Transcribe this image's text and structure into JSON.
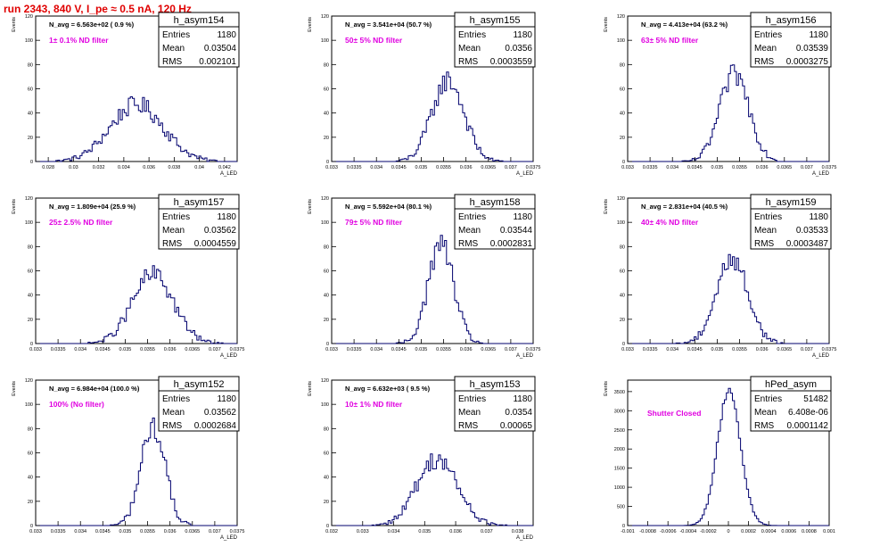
{
  "page_title": "run 2343,   840 V, I_pe ≈ 0.5 nA, 120 Hz",
  "colors": {
    "hist": "#00006e",
    "annot": "#e000e0",
    "title": "#e00000",
    "axis": "#000000"
  },
  "chart_data": [
    {
      "type": "histogram",
      "name": "h_asym154",
      "nlabel": "N_avg = 6.563e+02 ( 0.9 %)",
      "filter": "1± 0.1% ND filter",
      "stats": [
        [
          "Entries",
          "1180"
        ],
        [
          "Mean",
          "0.03504"
        ],
        [
          "RMS",
          "0.002101"
        ]
      ],
      "xlim": [
        0.027,
        0.043
      ],
      "ylim": [
        0,
        120
      ],
      "xticks": [
        0.028,
        0.03,
        0.032,
        0.034,
        0.036,
        0.038,
        0.04,
        0.042
      ],
      "xtick_labels": [
        "0.028",
        "0.03",
        "0.032",
        "0.034",
        "0.036",
        "0.038",
        "0.04",
        "0.042"
      ],
      "yticks": [
        0,
        20,
        40,
        60,
        80,
        100,
        120
      ],
      "ytick_labels": [
        "0",
        "20",
        "40",
        "60",
        "80",
        "100",
        "120"
      ],
      "ylabel": "Events",
      "xlabel": "A_LED",
      "mean": 0.03504,
      "rms": 0.002101,
      "peak": 47
    },
    {
      "type": "histogram",
      "name": "h_asym155",
      "nlabel": "N_avg = 3.541e+04 (50.7 %)",
      "filter": "50± 5% ND filter",
      "stats": [
        [
          "Entries",
          "1180"
        ],
        [
          "Mean",
          "0.0356"
        ],
        [
          "RMS",
          "0.0003559"
        ]
      ],
      "xlim": [
        0.033,
        0.0375
      ],
      "ylim": [
        0,
        120
      ],
      "xticks": [
        0.033,
        0.0335,
        0.034,
        0.0345,
        0.035,
        0.0355,
        0.036,
        0.0365,
        0.037,
        0.0375
      ],
      "xtick_labels": [
        "0.033",
        "0.0335",
        "0.034",
        "0.0345",
        "0.035",
        "0.0355",
        "0.036",
        "0.0365",
        "0.037",
        "0.0375"
      ],
      "yticks": [
        0,
        20,
        40,
        60,
        80,
        100,
        120
      ],
      "ytick_labels": [
        "0",
        "20",
        "40",
        "60",
        "80",
        "100",
        "120"
      ],
      "ylabel": "Events",
      "xlabel": "A_LED",
      "mean": 0.0356,
      "rms": 0.0003559,
      "peak": 67
    },
    {
      "type": "histogram",
      "name": "h_asym156",
      "nlabel": "N_avg = 4.413e+04 (63.2 %)",
      "filter": "63± 5% ND filter",
      "stats": [
        [
          "Entries",
          "1180"
        ],
        [
          "Mean",
          "0.03539"
        ],
        [
          "RMS",
          "0.0003275"
        ]
      ],
      "xlim": [
        0.033,
        0.0375
      ],
      "ylim": [
        0,
        120
      ],
      "xticks": [
        0.033,
        0.0335,
        0.034,
        0.0345,
        0.035,
        0.0355,
        0.036,
        0.0365,
        0.037,
        0.0375
      ],
      "xtick_labels": [
        "0.033",
        "0.0335",
        "0.034",
        "0.0345",
        "0.035",
        "0.0355",
        "0.036",
        "0.0365",
        "0.037",
        "0.0375"
      ],
      "yticks": [
        0,
        20,
        40,
        60,
        80,
        100,
        120
      ],
      "ytick_labels": [
        "0",
        "20",
        "40",
        "60",
        "80",
        "100",
        "120"
      ],
      "ylabel": "Events",
      "xlabel": "A_LED",
      "mean": 0.03539,
      "rms": 0.0003275,
      "peak": 72
    },
    {
      "type": "histogram",
      "name": "h_asym157",
      "nlabel": "N_avg = 1.809e+04 (25.9 %)",
      "filter": "25± 2.5% ND filter",
      "stats": [
        [
          "Entries",
          "1180"
        ],
        [
          "Mean",
          "0.03562"
        ],
        [
          "RMS",
          "0.0004559"
        ]
      ],
      "xlim": [
        0.033,
        0.0375
      ],
      "ylim": [
        0,
        120
      ],
      "xticks": [
        0.033,
        0.0335,
        0.034,
        0.0345,
        0.035,
        0.0355,
        0.036,
        0.0365,
        0.037,
        0.0375
      ],
      "xtick_labels": [
        "0.033",
        "0.0335",
        "0.034",
        "0.0345",
        "0.035",
        "0.0355",
        "0.036",
        "0.0365",
        "0.037",
        "0.0375"
      ],
      "yticks": [
        0,
        20,
        40,
        60,
        80,
        100,
        120
      ],
      "ytick_labels": [
        "0",
        "20",
        "40",
        "60",
        "80",
        "100",
        "120"
      ],
      "ylabel": "Events",
      "xlabel": "A_LED",
      "mean": 0.03562,
      "rms": 0.0004559,
      "peak": 57
    },
    {
      "type": "histogram",
      "name": "h_asym158",
      "nlabel": "N_avg = 5.592e+04 (80.1 %)",
      "filter": "79± 5% ND filter",
      "stats": [
        [
          "Entries",
          "1180"
        ],
        [
          "Mean",
          "0.03544"
        ],
        [
          "RMS",
          "0.0002831"
        ]
      ],
      "xlim": [
        0.033,
        0.0375
      ],
      "ylim": [
        0,
        120
      ],
      "xticks": [
        0.033,
        0.0335,
        0.034,
        0.0345,
        0.035,
        0.0355,
        0.036,
        0.0365,
        0.037,
        0.0375
      ],
      "xtick_labels": [
        "0.033",
        "0.0335",
        "0.034",
        "0.0345",
        "0.035",
        "0.0355",
        "0.036",
        "0.0365",
        "0.037",
        "0.0375"
      ],
      "yticks": [
        0,
        20,
        40,
        60,
        80,
        100,
        120
      ],
      "ytick_labels": [
        "0",
        "20",
        "40",
        "60",
        "80",
        "100",
        "120"
      ],
      "ylabel": "Events",
      "xlabel": "A_LED",
      "mean": 0.03544,
      "rms": 0.0002831,
      "peak": 82
    },
    {
      "type": "histogram",
      "name": "h_asym159",
      "nlabel": "N_avg = 2.831e+04 (40.5 %)",
      "filter": "40± 4% ND filter",
      "stats": [
        [
          "Entries",
          "1180"
        ],
        [
          "Mean",
          "0.03533"
        ],
        [
          "RMS",
          "0.0003487"
        ]
      ],
      "xlim": [
        0.033,
        0.0375
      ],
      "ylim": [
        0,
        120
      ],
      "xticks": [
        0.033,
        0.0335,
        0.034,
        0.0345,
        0.035,
        0.0355,
        0.036,
        0.0365,
        0.037,
        0.0375
      ],
      "xtick_labels": [
        "0.033",
        "0.0335",
        "0.034",
        "0.0345",
        "0.035",
        "0.0355",
        "0.036",
        "0.0365",
        "0.037",
        "0.0375"
      ],
      "yticks": [
        0,
        20,
        40,
        60,
        80,
        100,
        120
      ],
      "ytick_labels": [
        "0",
        "20",
        "40",
        "60",
        "80",
        "100",
        "120"
      ],
      "ylabel": "Events",
      "xlabel": "A_LED",
      "mean": 0.03533,
      "rms": 0.0003487,
      "peak": 70
    },
    {
      "type": "histogram",
      "name": "h_asym152",
      "nlabel": "N_avg = 6.984e+04 (100.0 %)",
      "filter": "100% (No filter)",
      "stats": [
        [
          "Entries",
          "1180"
        ],
        [
          "Mean",
          "0.03562"
        ],
        [
          "RMS",
          "0.0002684"
        ]
      ],
      "xlim": [
        0.033,
        0.0375
      ],
      "ylim": [
        0,
        120
      ],
      "xticks": [
        0.033,
        0.0335,
        0.034,
        0.0345,
        0.035,
        0.0355,
        0.036,
        0.0365,
        0.037,
        0.0375
      ],
      "xtick_labels": [
        "0.033",
        "0.0335",
        "0.034",
        "0.0345",
        "0.035",
        "0.0355",
        "0.036",
        "0.0365",
        "0.037",
        "0.0375"
      ],
      "yticks": [
        0,
        20,
        40,
        60,
        80,
        100,
        120
      ],
      "ytick_labels": [
        "0",
        "20",
        "40",
        "60",
        "80",
        "100",
        "120"
      ],
      "ylabel": "Events",
      "xlabel": "A_LED",
      "mean": 0.03562,
      "rms": 0.0002684,
      "peak": 82
    },
    {
      "type": "histogram",
      "name": "h_asym153",
      "nlabel": "N_avg = 6.632e+03 ( 9.5 %)",
      "filter": "10± 1% ND filter",
      "stats": [
        [
          "Entries",
          "1180"
        ],
        [
          "Mean",
          "0.0354"
        ],
        [
          "RMS",
          "0.00065"
        ]
      ],
      "xlim": [
        0.032,
        0.0385
      ],
      "ylim": [
        0,
        120
      ],
      "xticks": [
        0.032,
        0.033,
        0.034,
        0.035,
        0.036,
        0.037,
        0.038
      ],
      "xtick_labels": [
        "0.032",
        "0.033",
        "0.034",
        "0.035",
        "0.036",
        "0.037",
        "0.038"
      ],
      "yticks": [
        0,
        20,
        40,
        60,
        80,
        100,
        120
      ],
      "ytick_labels": [
        "0",
        "20",
        "40",
        "60",
        "80",
        "100",
        "120"
      ],
      "ylabel": "Events",
      "xlabel": "A_LED",
      "mean": 0.0354,
      "rms": 0.00065,
      "peak": 55
    },
    {
      "type": "histogram",
      "name": "hPed_asym",
      "nlabel": "",
      "filter": "Shutter Closed",
      "stats": [
        [
          "Entries",
          "51482"
        ],
        [
          "Mean",
          "6.408e-06"
        ],
        [
          "RMS",
          "0.0001142"
        ]
      ],
      "xlim": [
        -0.001,
        0.001
      ],
      "ylim": [
        0,
        3800
      ],
      "xticks": [
        -0.001,
        -0.0008,
        -0.0006,
        -0.0004,
        -0.0002,
        0,
        0.0002,
        0.0004,
        0.0006,
        0.0008,
        0.001
      ],
      "xtick_labels": [
        "-0.001",
        "-0.0008",
        "-0.0006",
        "-0.0004",
        "-0.0002",
        "0",
        "0.0002",
        "0.0004",
        "0.0006",
        "0.0008",
        "0.001"
      ],
      "yticks": [
        0,
        500,
        1000,
        1500,
        2000,
        2500,
        3000,
        3500
      ],
      "ytick_labels": [
        "0",
        "500",
        "1000",
        "1500",
        "2000",
        "2500",
        "3000",
        "3500"
      ],
      "ylabel": "Events",
      "xlabel": "",
      "mean": 6.408e-06,
      "rms": 0.0001142,
      "peak": 3550
    }
  ]
}
